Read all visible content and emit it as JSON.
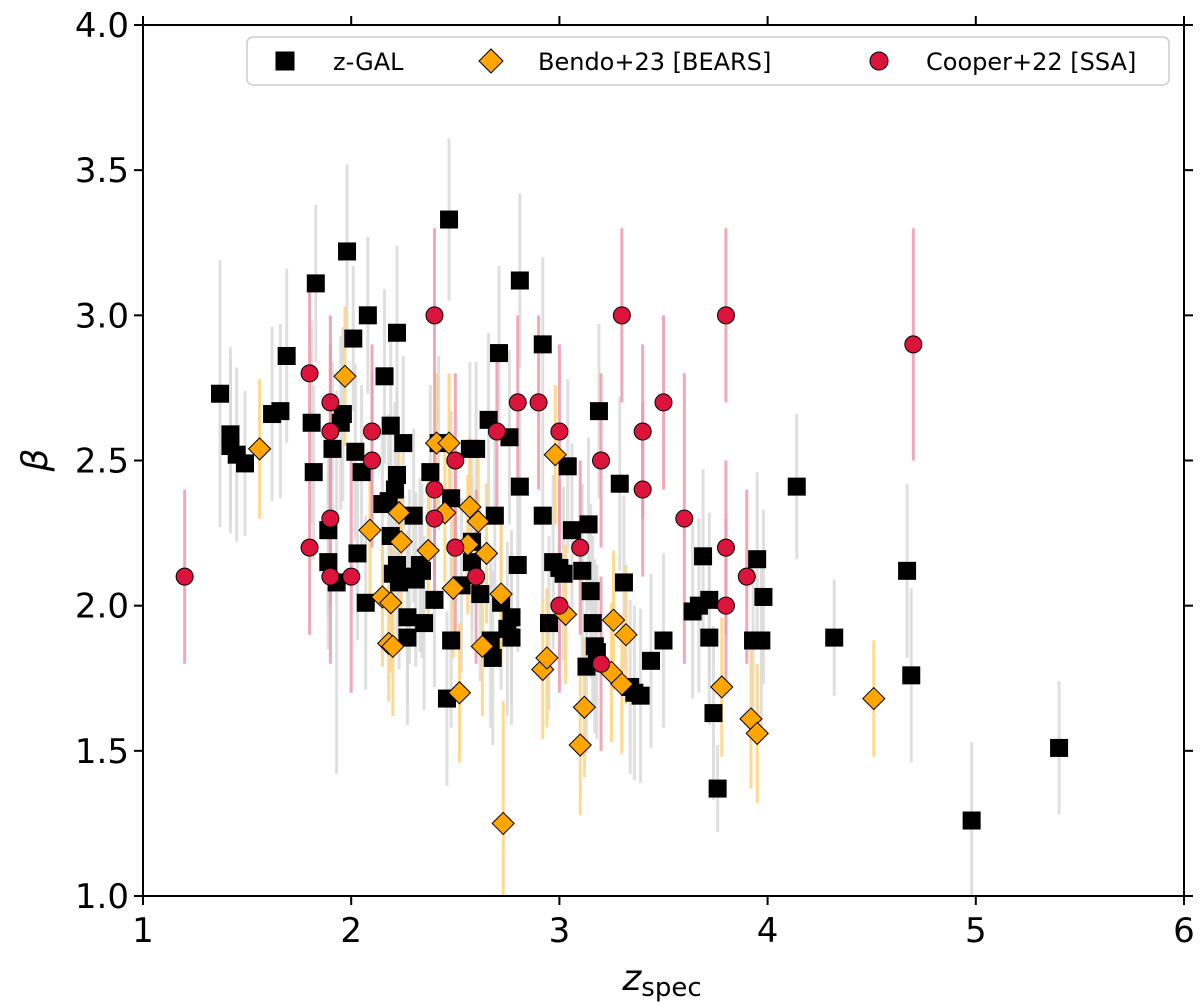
{
  "chart_data": {
    "type": "scatter",
    "title": "",
    "xlabel": {
      "main": "z",
      "sub": "spec"
    },
    "ylabel": "β",
    "xlim": [
      1,
      6
    ],
    "ylim": [
      1.0,
      4.0
    ],
    "xticks": [
      "1",
      "2",
      "3",
      "4",
      "5",
      "6"
    ],
    "yticks": [
      "1.0",
      "1.5",
      "2.0",
      "2.5",
      "3.0",
      "3.5",
      "4.0"
    ],
    "grid": false,
    "legend": {
      "placement": "top-right",
      "entries": [
        "z-GAL",
        "Bendo+23 [BEARS]",
        "Cooper+22 [SSA]"
      ]
    },
    "series": [
      {
        "name": "z-GAL",
        "marker": "square",
        "color": "#000000",
        "errcolor": "#d9d9d9",
        "points": [
          {
            "x": 1.37,
            "y": 2.73,
            "e": 0.46
          },
          {
            "x": 1.42,
            "y": 2.59,
            "e": 0.3
          },
          {
            "x": 1.42,
            "y": 2.55,
            "e": 0.3
          },
          {
            "x": 1.45,
            "y": 2.52,
            "e": 0.3
          },
          {
            "x": 1.49,
            "y": 2.49,
            "e": 0.25
          },
          {
            "x": 1.62,
            "y": 2.66,
            "e": 0.3
          },
          {
            "x": 1.66,
            "y": 2.67,
            "e": 0.3
          },
          {
            "x": 1.69,
            "y": 2.86,
            "e": 0.3
          },
          {
            "x": 1.81,
            "y": 2.63,
            "e": 0.35
          },
          {
            "x": 1.82,
            "y": 2.46,
            "e": 0.3
          },
          {
            "x": 1.83,
            "y": 3.11,
            "e": 0.27
          },
          {
            "x": 1.89,
            "y": 2.15,
            "e": 0.3
          },
          {
            "x": 1.89,
            "y": 2.26,
            "e": 0.3
          },
          {
            "x": 1.91,
            "y": 2.54,
            "e": 0.3
          },
          {
            "x": 1.93,
            "y": 2.08,
            "e": 0.66
          },
          {
            "x": 1.95,
            "y": 2.63,
            "e": 0.3
          },
          {
            "x": 1.96,
            "y": 2.66,
            "e": 0.3
          },
          {
            "x": 1.98,
            "y": 3.22,
            "e": 0.3
          },
          {
            "x": 2.01,
            "y": 2.92,
            "e": 0.25
          },
          {
            "x": 2.02,
            "y": 2.53,
            "e": 0.3
          },
          {
            "x": 2.03,
            "y": 2.18,
            "e": 0.3
          },
          {
            "x": 2.05,
            "y": 2.46,
            "e": 0.3
          },
          {
            "x": 2.07,
            "y": 2.01,
            "e": 0.3
          },
          {
            "x": 2.08,
            "y": 3.0,
            "e": 0.27
          },
          {
            "x": 2.15,
            "y": 2.35,
            "e": 0.3
          },
          {
            "x": 2.16,
            "y": 2.79,
            "e": 0.3
          },
          {
            "x": 2.18,
            "y": 2.36,
            "e": 0.3
          },
          {
            "x": 2.19,
            "y": 2.62,
            "e": 0.3
          },
          {
            "x": 2.19,
            "y": 2.24,
            "e": 0.3
          },
          {
            "x": 2.2,
            "y": 2.11,
            "e": 0.3
          },
          {
            "x": 2.21,
            "y": 2.4,
            "e": 0.3
          },
          {
            "x": 2.22,
            "y": 2.94,
            "e": 0.3
          },
          {
            "x": 2.22,
            "y": 2.45,
            "e": 0.3
          },
          {
            "x": 2.22,
            "y": 2.14,
            "e": 0.3
          },
          {
            "x": 2.23,
            "y": 2.08,
            "e": 0.3
          },
          {
            "x": 2.25,
            "y": 2.56,
            "e": 0.3
          },
          {
            "x": 2.27,
            "y": 1.96,
            "e": 0.3
          },
          {
            "x": 2.27,
            "y": 1.89,
            "e": 0.3
          },
          {
            "x": 2.28,
            "y": 2.1,
            "e": 0.3
          },
          {
            "x": 2.3,
            "y": 2.31,
            "e": 0.3
          },
          {
            "x": 2.31,
            "y": 2.09,
            "e": 0.3
          },
          {
            "x": 2.33,
            "y": 2.14,
            "e": 0.3
          },
          {
            "x": 2.34,
            "y": 2.12,
            "e": 0.3
          },
          {
            "x": 2.35,
            "y": 1.94,
            "e": 0.3
          },
          {
            "x": 2.38,
            "y": 2.46,
            "e": 0.3
          },
          {
            "x": 2.4,
            "y": 2.02,
            "e": 0.3
          },
          {
            "x": 2.42,
            "y": 2.56,
            "e": 0.3
          },
          {
            "x": 2.46,
            "y": 1.68,
            "e": 0.3
          },
          {
            "x": 2.47,
            "y": 3.33,
            "e": 0.28
          },
          {
            "x": 2.48,
            "y": 2.37,
            "e": 0.3
          },
          {
            "x": 2.48,
            "y": 1.88,
            "e": 0.3
          },
          {
            "x": 2.53,
            "y": 2.07,
            "e": 0.3
          },
          {
            "x": 2.57,
            "y": 2.54,
            "e": 0.3
          },
          {
            "x": 2.58,
            "y": 2.22,
            "e": 0.3
          },
          {
            "x": 2.58,
            "y": 2.15,
            "e": 0.3
          },
          {
            "x": 2.6,
            "y": 2.54,
            "e": 0.3
          },
          {
            "x": 2.62,
            "y": 2.04,
            "e": 0.3
          },
          {
            "x": 2.66,
            "y": 2.64,
            "e": 0.3
          },
          {
            "x": 2.67,
            "y": 1.88,
            "e": 0.3
          },
          {
            "x": 2.68,
            "y": 1.82,
            "e": 0.3
          },
          {
            "x": 2.69,
            "y": 2.31,
            "e": 0.3
          },
          {
            "x": 2.71,
            "y": 2.87,
            "e": 0.3
          },
          {
            "x": 2.72,
            "y": 2.01,
            "e": 0.3
          },
          {
            "x": 2.75,
            "y": 1.92,
            "e": 0.3
          },
          {
            "x": 2.76,
            "y": 2.58,
            "e": 0.3
          },
          {
            "x": 2.77,
            "y": 1.89,
            "e": 0.3
          },
          {
            "x": 2.77,
            "y": 1.96,
            "e": 0.3
          },
          {
            "x": 2.8,
            "y": 2.14,
            "e": 0.3
          },
          {
            "x": 2.81,
            "y": 2.41,
            "e": 0.3
          },
          {
            "x": 2.81,
            "y": 3.12,
            "e": 0.3
          },
          {
            "x": 2.92,
            "y": 2.9,
            "e": 0.3
          },
          {
            "x": 2.92,
            "y": 2.31,
            "e": 0.3
          },
          {
            "x": 2.95,
            "y": 1.94,
            "e": 0.3
          },
          {
            "x": 2.97,
            "y": 2.15,
            "e": 0.3
          },
          {
            "x": 3.0,
            "y": 2.13,
            "e": 0.3
          },
          {
            "x": 3.02,
            "y": 2.11,
            "e": 0.3
          },
          {
            "x": 3.04,
            "y": 2.48,
            "e": 0.3
          },
          {
            "x": 3.06,
            "y": 2.26,
            "e": 0.3
          },
          {
            "x": 3.11,
            "y": 2.12,
            "e": 0.3
          },
          {
            "x": 3.13,
            "y": 1.79,
            "e": 0.3
          },
          {
            "x": 3.14,
            "y": 2.28,
            "e": 0.3
          },
          {
            "x": 3.15,
            "y": 2.05,
            "e": 0.3
          },
          {
            "x": 3.16,
            "y": 1.94,
            "e": 0.3
          },
          {
            "x": 3.17,
            "y": 1.86,
            "e": 0.3
          },
          {
            "x": 3.18,
            "y": 1.84,
            "e": 0.3
          },
          {
            "x": 3.19,
            "y": 2.67,
            "e": 0.3
          },
          {
            "x": 3.29,
            "y": 2.42,
            "e": 0.3
          },
          {
            "x": 3.31,
            "y": 2.08,
            "e": 0.3
          },
          {
            "x": 3.34,
            "y": 1.72,
            "e": 0.3
          },
          {
            "x": 3.36,
            "y": 1.7,
            "e": 0.3
          },
          {
            "x": 3.39,
            "y": 1.69,
            "e": 0.3
          },
          {
            "x": 3.44,
            "y": 1.81,
            "e": 0.3
          },
          {
            "x": 3.5,
            "y": 1.88,
            "e": 0.3
          },
          {
            "x": 3.64,
            "y": 1.98,
            "e": 0.3
          },
          {
            "x": 3.67,
            "y": 2.0,
            "e": 0.3
          },
          {
            "x": 3.69,
            "y": 2.17,
            "e": 0.3
          },
          {
            "x": 3.72,
            "y": 2.02,
            "e": 0.3
          },
          {
            "x": 3.72,
            "y": 1.89,
            "e": 0.3
          },
          {
            "x": 3.74,
            "y": 1.63,
            "e": 0.3
          },
          {
            "x": 3.76,
            "y": 1.37,
            "e": 0.15
          },
          {
            "x": 3.93,
            "y": 1.88,
            "e": 0.3
          },
          {
            "x": 3.95,
            "y": 2.16,
            "e": 0.3
          },
          {
            "x": 3.97,
            "y": 1.88,
            "e": 0.3
          },
          {
            "x": 3.98,
            "y": 2.03,
            "e": 0.3
          },
          {
            "x": 4.14,
            "y": 2.41,
            "e": 0.25
          },
          {
            "x": 4.32,
            "y": 1.89,
            "e": 0.2
          },
          {
            "x": 4.67,
            "y": 2.12,
            "e": 0.3
          },
          {
            "x": 4.69,
            "y": 1.76,
            "e": 0.3
          },
          {
            "x": 4.98,
            "y": 1.26,
            "e": 0.27
          },
          {
            "x": 5.4,
            "y": 1.51,
            "e": 0.23
          }
        ]
      },
      {
        "name": "Bendo+23 [BEARS]",
        "marker": "diamond",
        "color": "#ffa500",
        "errcolor": "#ffd27a",
        "points": [
          {
            "x": 1.56,
            "y": 2.54,
            "e": 0.24
          },
          {
            "x": 1.97,
            "y": 2.79,
            "e": 0.24
          },
          {
            "x": 2.09,
            "y": 2.26,
            "e": 0.24
          },
          {
            "x": 2.15,
            "y": 2.03,
            "e": 0.24
          },
          {
            "x": 2.18,
            "y": 1.87,
            "e": 0.2
          },
          {
            "x": 2.19,
            "y": 2.01,
            "e": 0.24
          },
          {
            "x": 2.2,
            "y": 1.86,
            "e": 0.24
          },
          {
            "x": 2.23,
            "y": 2.32,
            "e": 0.24
          },
          {
            "x": 2.24,
            "y": 2.22,
            "e": 0.24
          },
          {
            "x": 2.37,
            "y": 2.19,
            "e": 0.24
          },
          {
            "x": 2.41,
            "y": 2.56,
            "e": 0.24
          },
          {
            "x": 2.45,
            "y": 2.32,
            "e": 0.24
          },
          {
            "x": 2.47,
            "y": 2.56,
            "e": 0.24
          },
          {
            "x": 2.49,
            "y": 2.06,
            "e": 0.24
          },
          {
            "x": 2.52,
            "y": 1.7,
            "e": 0.24
          },
          {
            "x": 2.56,
            "y": 2.21,
            "e": 0.24
          },
          {
            "x": 2.57,
            "y": 2.34,
            "e": 0.24
          },
          {
            "x": 2.61,
            "y": 2.29,
            "e": 0.24
          },
          {
            "x": 2.63,
            "y": 1.86,
            "e": 0.24
          },
          {
            "x": 2.65,
            "y": 2.18,
            "e": 0.24
          },
          {
            "x": 2.72,
            "y": 2.04,
            "e": 0.24
          },
          {
            "x": 2.73,
            "y": 1.25,
            "e": 0.42
          },
          {
            "x": 2.92,
            "y": 1.78,
            "e": 0.24
          },
          {
            "x": 2.94,
            "y": 1.82,
            "e": 0.24
          },
          {
            "x": 2.98,
            "y": 2.52,
            "e": 0.24
          },
          {
            "x": 3.03,
            "y": 1.97,
            "e": 0.24
          },
          {
            "x": 3.1,
            "y": 1.52,
            "e": 0.24
          },
          {
            "x": 3.12,
            "y": 1.65,
            "e": 0.24
          },
          {
            "x": 3.25,
            "y": 1.77,
            "e": 0.24
          },
          {
            "x": 3.26,
            "y": 1.95,
            "e": 0.24
          },
          {
            "x": 3.3,
            "y": 1.73,
            "e": 0.24
          },
          {
            "x": 3.32,
            "y": 1.9,
            "e": 0.24
          },
          {
            "x": 3.78,
            "y": 1.72,
            "e": 0.24
          },
          {
            "x": 3.92,
            "y": 1.61,
            "e": 0.24
          },
          {
            "x": 3.95,
            "y": 1.56,
            "e": 0.24
          },
          {
            "x": 4.51,
            "y": 1.68,
            "e": 0.2
          }
        ]
      },
      {
        "name": "Cooper+22 [SSA]",
        "marker": "circle",
        "color": "#dc143c",
        "errcolor": "#ec9aaa",
        "points": [
          {
            "x": 1.2,
            "y": 2.1,
            "e": 0.3
          },
          {
            "x": 1.8,
            "y": 2.8,
            "e": 0.3
          },
          {
            "x": 1.8,
            "y": 2.2,
            "e": 0.3
          },
          {
            "x": 1.9,
            "y": 2.7,
            "e": 0.3
          },
          {
            "x": 1.9,
            "y": 2.6,
            "e": 0.3
          },
          {
            "x": 1.9,
            "y": 2.3,
            "e": 0.3
          },
          {
            "x": 1.9,
            "y": 2.1,
            "e": 0.3
          },
          {
            "x": 2.0,
            "y": 2.1,
            "e": 0.4
          },
          {
            "x": 2.1,
            "y": 2.6,
            "e": 0.3
          },
          {
            "x": 2.1,
            "y": 2.5,
            "e": 0.3
          },
          {
            "x": 2.4,
            "y": 3.0,
            "e": 0.3
          },
          {
            "x": 2.4,
            "y": 2.4,
            "e": 0.3
          },
          {
            "x": 2.4,
            "y": 2.3,
            "e": 0.3
          },
          {
            "x": 2.5,
            "y": 2.5,
            "e": 0.3
          },
          {
            "x": 2.5,
            "y": 2.2,
            "e": 0.3
          },
          {
            "x": 2.6,
            "y": 2.1,
            "e": 0.3
          },
          {
            "x": 2.7,
            "y": 2.6,
            "e": 0.3
          },
          {
            "x": 2.8,
            "y": 2.7,
            "e": 0.3
          },
          {
            "x": 2.9,
            "y": 2.7,
            "e": 0.3
          },
          {
            "x": 3.0,
            "y": 2.6,
            "e": 0.3
          },
          {
            "x": 3.0,
            "y": 2.0,
            "e": 0.3
          },
          {
            "x": 3.1,
            "y": 2.2,
            "e": 0.3
          },
          {
            "x": 3.2,
            "y": 2.5,
            "e": 0.3
          },
          {
            "x": 3.2,
            "y": 1.8,
            "e": 0.3
          },
          {
            "x": 3.3,
            "y": 3.0,
            "e": 0.3
          },
          {
            "x": 3.4,
            "y": 2.6,
            "e": 0.3
          },
          {
            "x": 3.4,
            "y": 2.4,
            "e": 0.3
          },
          {
            "x": 3.5,
            "y": 2.7,
            "e": 0.3
          },
          {
            "x": 3.6,
            "y": 2.3,
            "e": 0.5
          },
          {
            "x": 3.8,
            "y": 3.0,
            "e": 0.3
          },
          {
            "x": 3.8,
            "y": 2.2,
            "e": 0.3
          },
          {
            "x": 3.8,
            "y": 2.0,
            "e": 0.3
          },
          {
            "x": 3.9,
            "y": 2.1,
            "e": 0.3
          },
          {
            "x": 4.7,
            "y": 2.9,
            "e": 0.4
          }
        ]
      }
    ]
  }
}
